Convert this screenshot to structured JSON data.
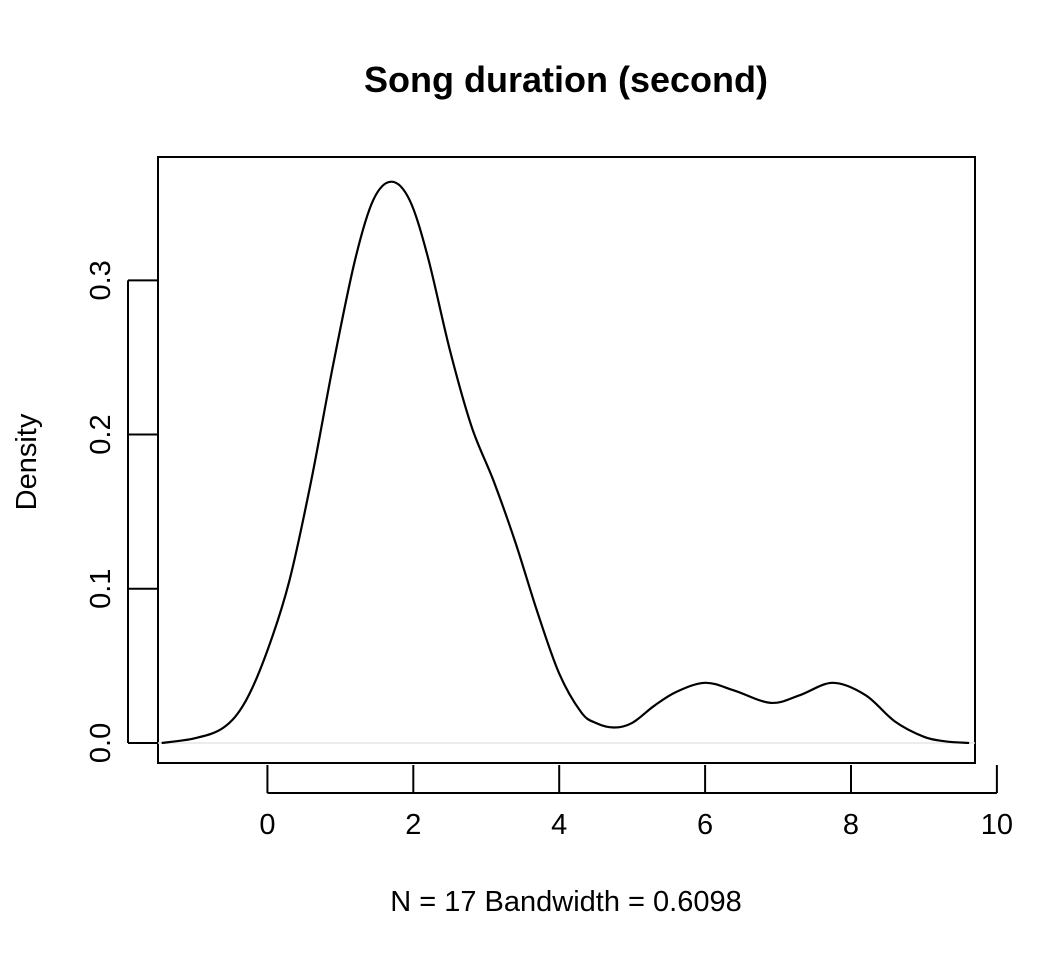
{
  "chart_data": {
    "type": "line",
    "title": "Song duration (second)",
    "xlabel": "N = 17   Bandwidth = 0.6098",
    "ylabel": "Density",
    "xlim": [
      -1.5,
      9.7
    ],
    "ylim": [
      -0.013,
      0.38
    ],
    "xticks": [
      0,
      2,
      4,
      6,
      8,
      10
    ],
    "xtick_labels": [
      "0",
      "2",
      "4",
      "6",
      "8",
      "10"
    ],
    "yticks": [
      0.0,
      0.1,
      0.2,
      0.3
    ],
    "ytick_labels": [
      "0.0",
      "0.1",
      "0.2",
      "0.3"
    ],
    "grid": false,
    "baseline_y": 0.0,
    "series": [
      {
        "color": "#000000",
        "x": [
          -1.45,
          -1.0,
          -0.6,
          -0.3,
          0.0,
          0.3,
          0.6,
          0.9,
          1.2,
          1.45,
          1.7,
          1.95,
          2.2,
          2.5,
          2.8,
          3.1,
          3.4,
          3.7,
          4.0,
          4.3,
          4.5,
          4.75,
          5.0,
          5.3,
          5.6,
          6.0,
          6.4,
          6.9,
          7.3,
          7.75,
          8.2,
          8.6,
          9.0,
          9.3,
          9.62
        ],
        "y": [
          0.0,
          0.003,
          0.01,
          0.027,
          0.06,
          0.105,
          0.17,
          0.245,
          0.313,
          0.352,
          0.364,
          0.352,
          0.315,
          0.255,
          0.205,
          0.17,
          0.13,
          0.085,
          0.045,
          0.02,
          0.013,
          0.01,
          0.013,
          0.024,
          0.033,
          0.039,
          0.034,
          0.026,
          0.031,
          0.039,
          0.031,
          0.014,
          0.004,
          0.001,
          0.0
        ]
      }
    ]
  }
}
